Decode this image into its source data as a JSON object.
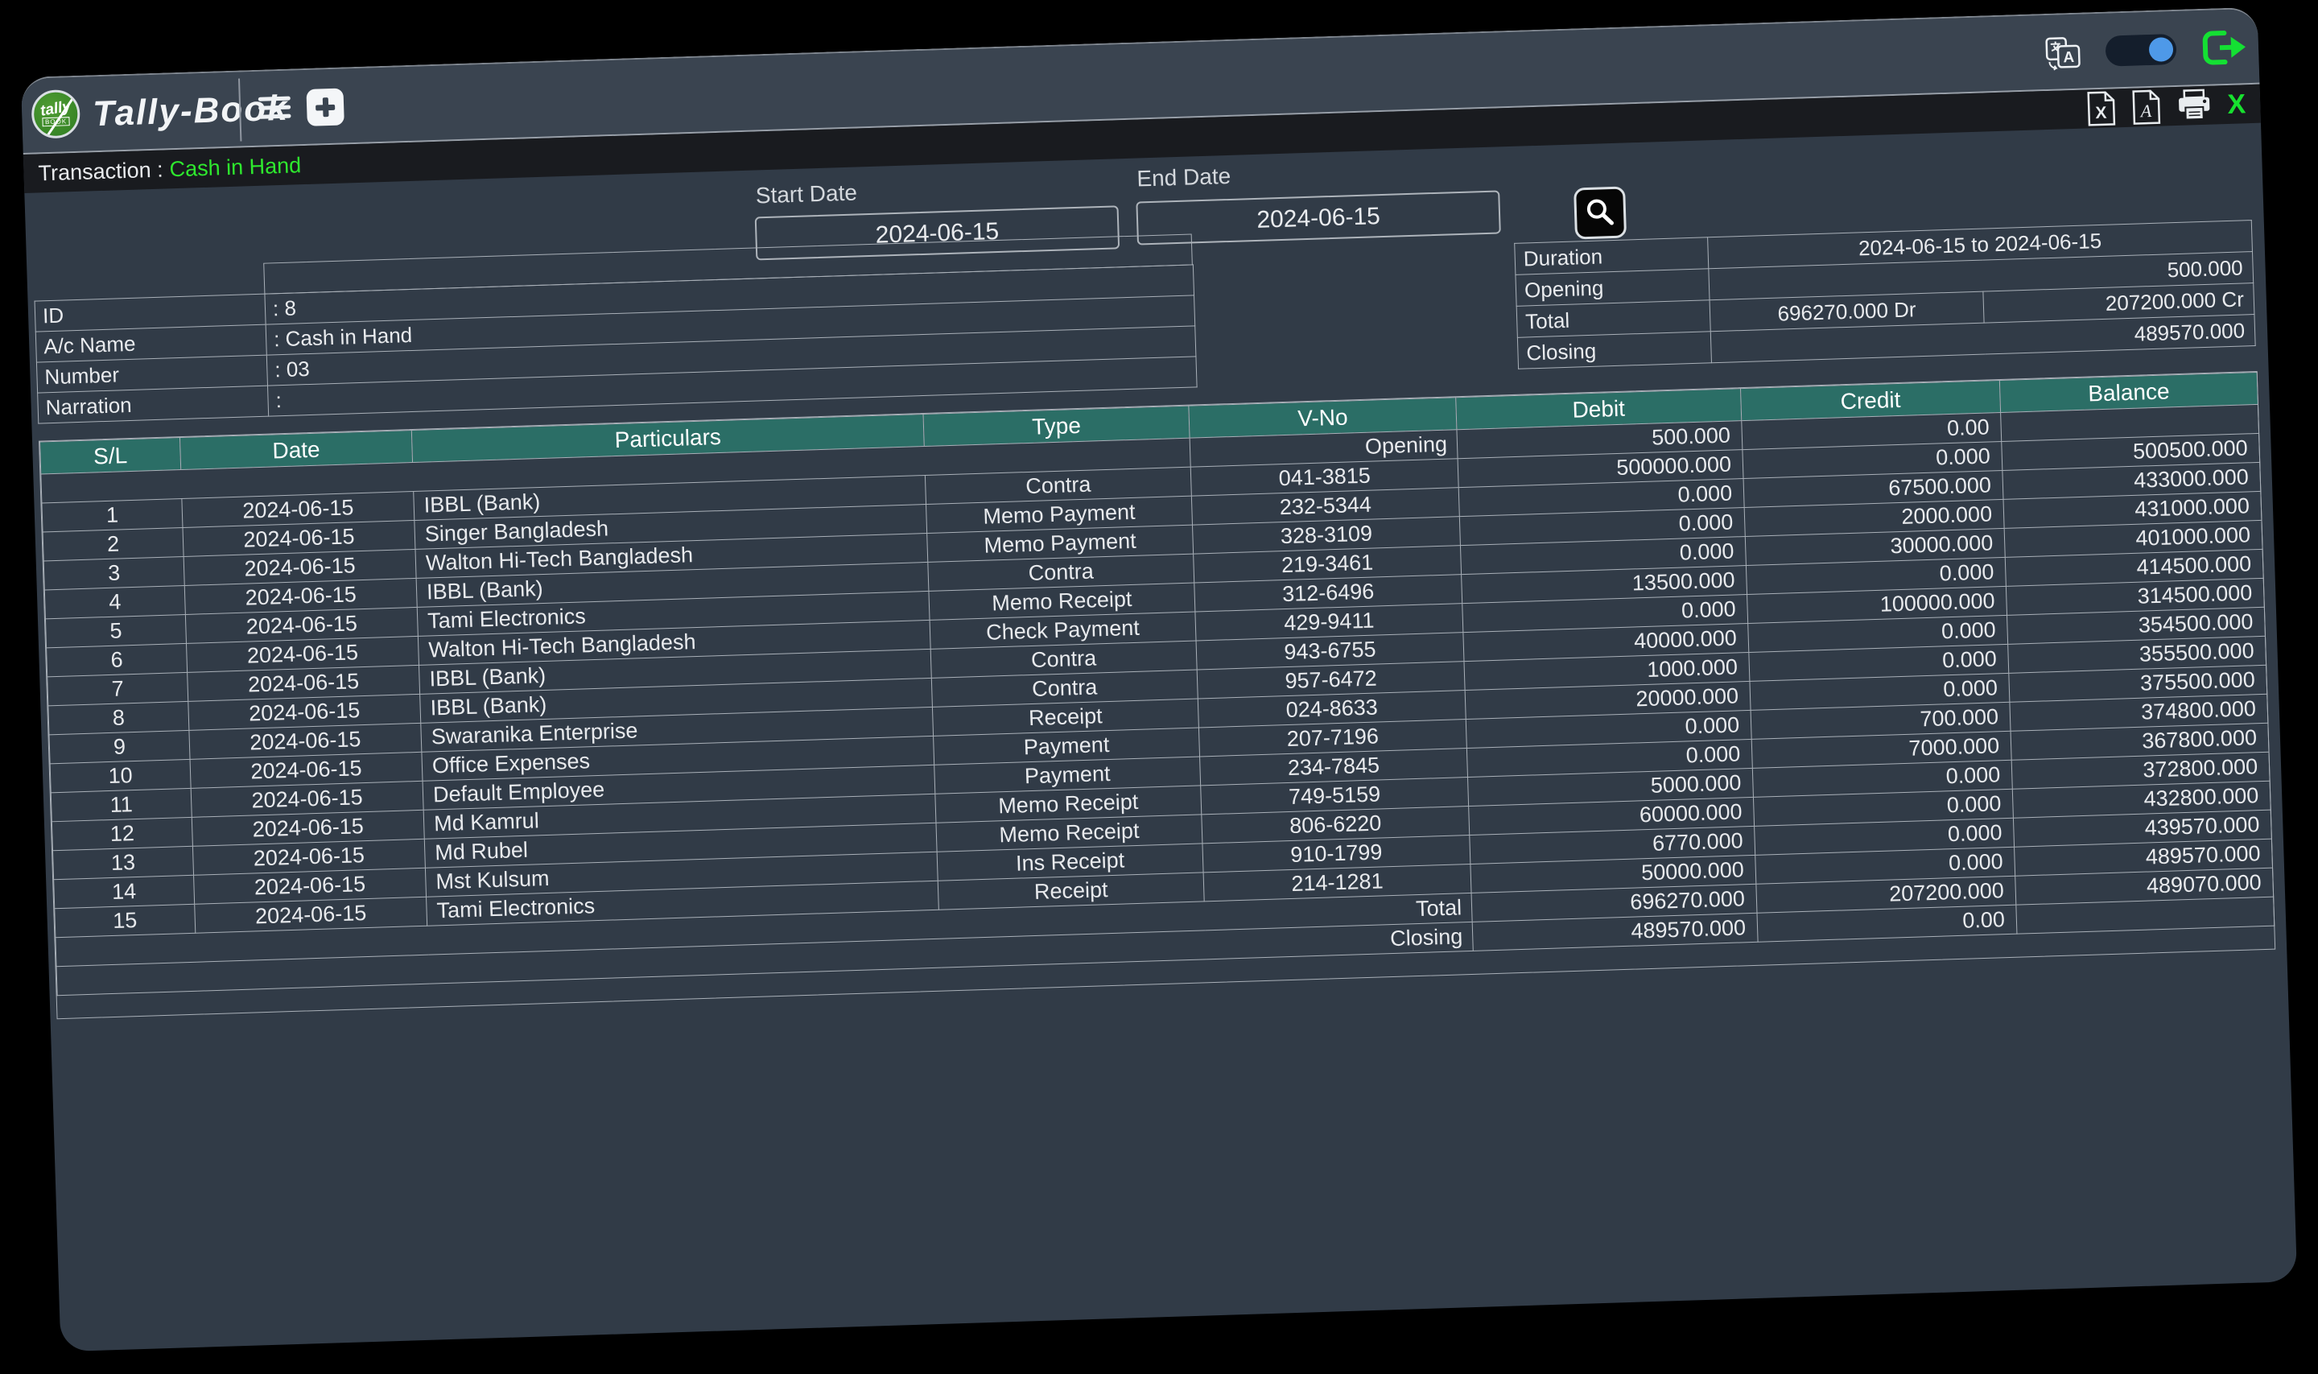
{
  "titlebar": {
    "app_title": "Tally-Book",
    "logo_text": "tally",
    "logo_sub": "BOOK",
    "toggle_state": "on"
  },
  "transaction_bar": {
    "label": "Transaction :",
    "value": "Cash in Hand",
    "close_label": "X"
  },
  "filters": {
    "start_date_label": "Start Date",
    "start_date_value": "2024-06-15",
    "end_date_label": "End Date",
    "end_date_value": "2024-06-15"
  },
  "summary": {
    "rows": [
      {
        "label": "Duration",
        "value": "2024-06-15 to 2024-06-15"
      },
      {
        "label": "Opening",
        "value": "500.000"
      },
      {
        "label": "Total",
        "debit": "696270.000 Dr",
        "credit": "207200.000 Cr"
      },
      {
        "label": "Closing",
        "value": "489570.000"
      }
    ]
  },
  "account_info": {
    "rows": [
      {
        "label": "ID",
        "value": ": 8"
      },
      {
        "label": "A/c Name",
        "value": ": Cash in Hand"
      },
      {
        "label": "Number",
        "value": ": 03"
      },
      {
        "label": "Narration",
        "value": ":"
      }
    ]
  },
  "ledger": {
    "headers": [
      "S/L",
      "Date",
      "Particulars",
      "Type",
      "V-No",
      "Debit",
      "Credit",
      "Balance"
    ],
    "opening_row": {
      "label": "Opening",
      "debit": "500.000",
      "credit": "0.00",
      "balance": ""
    },
    "rows": [
      {
        "sl": "1",
        "date": "2024-06-15",
        "particulars": "IBBL (Bank)",
        "type": "Contra",
        "vno": "041-3815",
        "debit": "500000.000",
        "credit": "0.000",
        "balance": "500500.000"
      },
      {
        "sl": "2",
        "date": "2024-06-15",
        "particulars": "Singer Bangladesh",
        "type": "Memo Payment",
        "vno": "232-5344",
        "debit": "0.000",
        "credit": "67500.000",
        "balance": "433000.000"
      },
      {
        "sl": "3",
        "date": "2024-06-15",
        "particulars": "Walton Hi-Tech Bangladesh",
        "type": "Memo Payment",
        "vno": "328-3109",
        "debit": "0.000",
        "credit": "2000.000",
        "balance": "431000.000"
      },
      {
        "sl": "4",
        "date": "2024-06-15",
        "particulars": "IBBL (Bank)",
        "type": "Contra",
        "vno": "219-3461",
        "debit": "0.000",
        "credit": "30000.000",
        "balance": "401000.000"
      },
      {
        "sl": "5",
        "date": "2024-06-15",
        "particulars": "Tami Electronics",
        "type": "Memo Receipt",
        "vno": "312-6496",
        "debit": "13500.000",
        "credit": "0.000",
        "balance": "414500.000"
      },
      {
        "sl": "6",
        "date": "2024-06-15",
        "particulars": "Walton Hi-Tech Bangladesh",
        "type": "Check Payment",
        "vno": "429-9411",
        "debit": "0.000",
        "credit": "100000.000",
        "balance": "314500.000"
      },
      {
        "sl": "7",
        "date": "2024-06-15",
        "particulars": "IBBL (Bank)",
        "type": "Contra",
        "vno": "943-6755",
        "debit": "40000.000",
        "credit": "0.000",
        "balance": "354500.000"
      },
      {
        "sl": "8",
        "date": "2024-06-15",
        "particulars": "IBBL (Bank)",
        "type": "Contra",
        "vno": "957-6472",
        "debit": "1000.000",
        "credit": "0.000",
        "balance": "355500.000"
      },
      {
        "sl": "9",
        "date": "2024-06-15",
        "particulars": "Swaranika Enterprise",
        "type": "Receipt",
        "vno": "024-8633",
        "debit": "20000.000",
        "credit": "0.000",
        "balance": "375500.000"
      },
      {
        "sl": "10",
        "date": "2024-06-15",
        "particulars": "Office Expenses",
        "type": "Payment",
        "vno": "207-7196",
        "debit": "0.000",
        "credit": "700.000",
        "balance": "374800.000"
      },
      {
        "sl": "11",
        "date": "2024-06-15",
        "particulars": "Default Employee",
        "type": "Payment",
        "vno": "234-7845",
        "debit": "0.000",
        "credit": "7000.000",
        "balance": "367800.000"
      },
      {
        "sl": "12",
        "date": "2024-06-15",
        "particulars": "Md Kamrul",
        "type": "Memo Receipt",
        "vno": "749-5159",
        "debit": "5000.000",
        "credit": "0.000",
        "balance": "372800.000"
      },
      {
        "sl": "13",
        "date": "2024-06-15",
        "particulars": "Md Rubel",
        "type": "Memo Receipt",
        "vno": "806-6220",
        "debit": "60000.000",
        "credit": "0.000",
        "balance": "432800.000"
      },
      {
        "sl": "14",
        "date": "2024-06-15",
        "particulars": "Mst Kulsum",
        "type": "Ins Receipt",
        "vno": "910-1799",
        "debit": "6770.000",
        "credit": "0.000",
        "balance": "439570.000"
      },
      {
        "sl": "15",
        "date": "2024-06-15",
        "particulars": "Tami Electronics",
        "type": "Receipt",
        "vno": "214-1281",
        "debit": "50000.000",
        "credit": "0.000",
        "balance": "489570.000"
      }
    ],
    "total_row": {
      "label": "Total",
      "debit": "696270.000",
      "credit": "207200.000",
      "balance": "489070.000"
    },
    "closing_row": {
      "label": "Closing",
      "debit": "489570.000",
      "credit": "0.00",
      "balance": ""
    }
  },
  "colors": {
    "header_teal": "#2b6e66",
    "accent_green": "#2ee82e",
    "toggle_blue": "#4e99e8",
    "logout_green": "#14e033",
    "window_slate": "#313b47",
    "titlebar_slate": "#3a4450",
    "strip_black": "#191b1f"
  }
}
